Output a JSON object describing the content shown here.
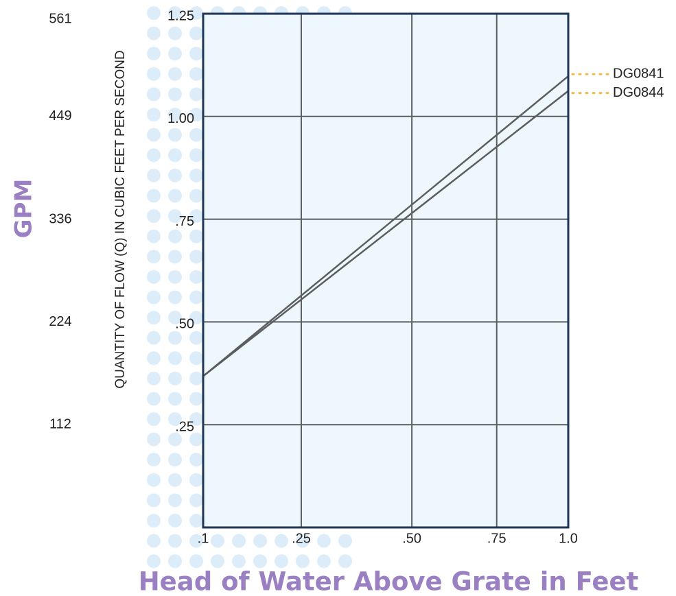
{
  "chart_data": {
    "type": "line",
    "y_label": "QUANTITY OF FLOW (Q) IN CUBIC FEET PER SECOND",
    "y2_label": "GPM",
    "x_label": "Head of Water Above Grate in Feet",
    "x": [
      0.1,
      1.0
    ],
    "xscale": "sqrt",
    "xlim": [
      0.1,
      1.0
    ],
    "xticks": [
      {
        "value": 0.1,
        "label": ".1"
      },
      {
        "value": 0.25,
        "label": ".25"
      },
      {
        "value": 0.5,
        "label": ".50"
      },
      {
        "value": 0.75,
        "label": ".75"
      },
      {
        "value": 1.0,
        "label": "1.0"
      }
    ],
    "ylim": [
      0,
      1.25
    ],
    "yticks": [
      {
        "value": 0.25,
        "label": ".25"
      },
      {
        "value": 0.5,
        "label": ".50"
      },
      {
        "value": 0.75,
        "label": ".75"
      },
      {
        "value": 1.0,
        "label": "1.00"
      },
      1.25
    ],
    "y2lim": [
      0,
      561
    ],
    "y2ticks": [
      112,
      224,
      336,
      449,
      561
    ],
    "grid": true,
    "series": [
      {
        "name": "DG0841",
        "color": "#5a5d62",
        "values": [
          0.368,
          1.098
        ]
      },
      {
        "name": "DG0844",
        "color": "#5a5d62",
        "values": [
          0.368,
          1.062
        ]
      }
    ]
  }
}
